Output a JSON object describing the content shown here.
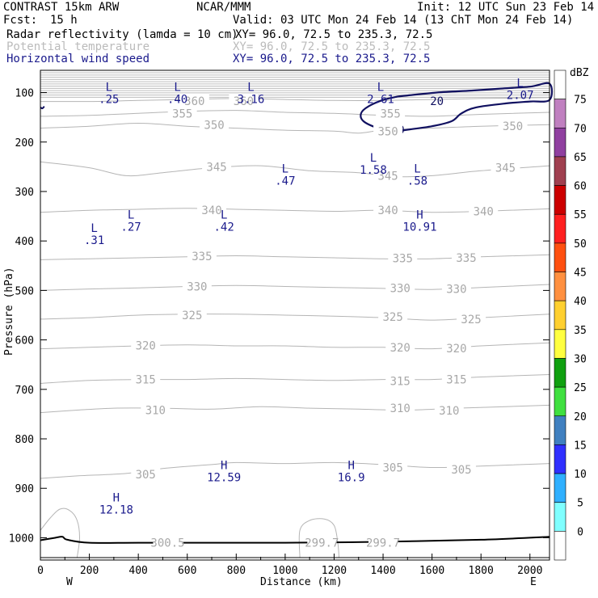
{
  "header": {
    "model": "CONTRAST 15km ARW",
    "org": "NCAR/MMM",
    "init": "Init: 12 UTC Sun 23 Feb 14",
    "fcst_label": "Fcst:",
    "fcst_value": "15 h",
    "valid": "Valid: 03 UTC Mon 24 Feb 14 (13 ChT Mon 24 Feb 14)",
    "fields": [
      {
        "name": "Radar reflectivity (lamda = 10 cm)",
        "xy": "XY=  96.0, 72.5 to 235.3, 72.5",
        "color": "#000000"
      },
      {
        "name": "Potential temperature",
        "xy": "XY=  96.0, 72.5 to 235.3, 72.5",
        "color": "#bbbbbb"
      },
      {
        "name": "Horizontal wind speed",
        "xy": "XY=  96.0, 72.5 to 235.3, 72.5",
        "color": "#1a1a8c"
      }
    ]
  },
  "colorbar": {
    "unit": "dBZ",
    "levels": [
      "75",
      "70",
      "65",
      "60",
      "55",
      "50",
      "45",
      "40",
      "35",
      "30",
      "25",
      "20",
      "15",
      "10",
      "5",
      "0"
    ],
    "colors": [
      "#ffffff",
      "#c080c0",
      "#9040a0",
      "#a04050",
      "#cc0000",
      "#ff2020",
      "#ff5010",
      "#ff9040",
      "#ffd030",
      "#ffff40",
      "#10a010",
      "#40e040",
      "#4080c0",
      "#3030ff",
      "#30b0ff",
      "#80ffff",
      "#ffffff"
    ]
  },
  "chart_data": {
    "type": "cross-section",
    "xlabel": "Distance (km)",
    "ylabel": "Pressure (hPa)",
    "xlim": [
      0,
      2080
    ],
    "ylim": [
      1045,
      55
    ],
    "x_ticks": [
      "0",
      "200",
      "400",
      "600",
      "800",
      "1000",
      "1200",
      "1400",
      "1600",
      "1800",
      "2000"
    ],
    "x_tick_values": [
      0,
      200,
      400,
      600,
      800,
      1000,
      1200,
      1400,
      1600,
      1800,
      2000
    ],
    "y_ticks": [
      "100",
      "200",
      "300",
      "400",
      "500",
      "600",
      "700",
      "800",
      "900",
      "1000"
    ],
    "y_tick_values": [
      100,
      200,
      300,
      400,
      500,
      600,
      700,
      800,
      900,
      1000
    ],
    "endpoints": {
      "left": "W",
      "right": "E"
    },
    "theta_contours": [
      {
        "label": "300.5",
        "points": [
          [
            0,
            1045
          ],
          [
            2080,
            1045
          ]
        ]
      },
      {
        "label": "305",
        "points": [
          [
            0,
            880
          ],
          [
            150,
            875
          ],
          [
            350,
            870
          ],
          [
            500,
            860
          ],
          [
            700,
            852
          ],
          [
            800,
            848
          ],
          [
            1000,
            850
          ],
          [
            1200,
            848
          ],
          [
            1400,
            852
          ],
          [
            1600,
            858
          ],
          [
            1800,
            855
          ],
          [
            2080,
            850
          ]
        ]
      },
      {
        "label": "310",
        "points": [
          [
            0,
            747
          ],
          [
            150,
            742
          ],
          [
            300,
            738
          ],
          [
            500,
            738
          ],
          [
            700,
            740
          ],
          [
            900,
            735
          ],
          [
            1100,
            738
          ],
          [
            1300,
            740
          ],
          [
            1500,
            742
          ],
          [
            1700,
            738
          ],
          [
            1900,
            735
          ],
          [
            2080,
            732
          ]
        ]
      },
      {
        "label": "315",
        "points": [
          [
            0,
            688
          ],
          [
            200,
            682
          ],
          [
            400,
            680
          ],
          [
            600,
            680
          ],
          [
            800,
            678
          ],
          [
            1000,
            680
          ],
          [
            1200,
            682
          ],
          [
            1400,
            680
          ],
          [
            1600,
            680
          ],
          [
            1800,
            675
          ],
          [
            2080,
            670
          ]
        ]
      },
      {
        "label": "320",
        "points": [
          [
            0,
            618
          ],
          [
            200,
            615
          ],
          [
            400,
            612
          ],
          [
            600,
            610
          ],
          [
            800,
            612
          ],
          [
            1000,
            612
          ],
          [
            1200,
            615
          ],
          [
            1400,
            615
          ],
          [
            1600,
            618
          ],
          [
            1800,
            612
          ],
          [
            2080,
            606
          ]
        ]
      },
      {
        "label": "325",
        "points": [
          [
            0,
            558
          ],
          [
            200,
            555
          ],
          [
            400,
            550
          ],
          [
            600,
            548
          ],
          [
            800,
            548
          ],
          [
            1000,
            550
          ],
          [
            1200,
            552
          ],
          [
            1400,
            555
          ],
          [
            1600,
            560
          ],
          [
            1800,
            555
          ],
          [
            2080,
            548
          ]
        ]
      },
      {
        "label": "330",
        "points": [
          [
            0,
            500
          ],
          [
            200,
            497
          ],
          [
            400,
            495
          ],
          [
            600,
            492
          ],
          [
            800,
            490
          ],
          [
            1000,
            492
          ],
          [
            1200,
            494
          ],
          [
            1400,
            496
          ],
          [
            1600,
            498
          ],
          [
            1800,
            494
          ],
          [
            2080,
            488
          ]
        ]
      },
      {
        "label": "335",
        "points": [
          [
            0,
            438
          ],
          [
            200,
            436
          ],
          [
            400,
            434
          ],
          [
            600,
            432
          ],
          [
            800,
            430
          ],
          [
            1000,
            432
          ],
          [
            1200,
            434
          ],
          [
            1400,
            436
          ],
          [
            1600,
            436
          ],
          [
            1800,
            432
          ],
          [
            2080,
            428
          ]
        ]
      },
      {
        "label": "340",
        "points": [
          [
            0,
            342
          ],
          [
            200,
            338
          ],
          [
            400,
            336
          ],
          [
            600,
            334
          ],
          [
            800,
            336
          ],
          [
            1000,
            338
          ],
          [
            1200,
            340
          ],
          [
            1400,
            338
          ],
          [
            1600,
            342
          ],
          [
            1800,
            340
          ],
          [
            2080,
            335
          ]
        ]
      },
      {
        "label": "345",
        "points": [
          [
            0,
            240
          ],
          [
            200,
            252
          ],
          [
            350,
            268
          ],
          [
            500,
            262
          ],
          [
            700,
            252
          ],
          [
            900,
            248
          ],
          [
            1100,
            258
          ],
          [
            1300,
            262
          ],
          [
            1450,
            270
          ],
          [
            1600,
            268
          ],
          [
            1800,
            258
          ],
          [
            2080,
            248
          ]
        ]
      },
      {
        "label": "350",
        "points": [
          [
            0,
            172
          ],
          [
            200,
            168
          ],
          [
            400,
            162
          ],
          [
            600,
            168
          ],
          [
            800,
            172
          ],
          [
            1000,
            176
          ],
          [
            1200,
            178
          ],
          [
            1300,
            182
          ],
          [
            1400,
            176
          ],
          [
            1600,
            172
          ],
          [
            1800,
            168
          ],
          [
            2080,
            165
          ]
        ]
      },
      {
        "label": "355",
        "points": [
          [
            0,
            148
          ],
          [
            200,
            146
          ],
          [
            400,
            142
          ],
          [
            600,
            138
          ],
          [
            800,
            136
          ],
          [
            1000,
            140
          ],
          [
            1200,
            142
          ],
          [
            1400,
            146
          ],
          [
            1600,
            148
          ],
          [
            1800,
            144
          ],
          [
            2080,
            140
          ]
        ]
      },
      {
        "label": "360",
        "points": [
          [
            0,
            118
          ],
          [
            200,
            118
          ],
          [
            400,
            116
          ],
          [
            600,
            114
          ],
          [
            800,
            112
          ],
          [
            1000,
            114
          ],
          [
            1200,
            116
          ],
          [
            1400,
            116
          ],
          [
            1600,
            114
          ],
          [
            1800,
            112
          ],
          [
            2080,
            110
          ]
        ]
      }
    ],
    "theta_labels": [
      {
        "x": 1400,
        "y": 1010,
        "text": "299.7"
      },
      {
        "x": 520,
        "y": 1010,
        "text": "300.5"
      },
      {
        "x": 1150,
        "y": 1010,
        "text": "299.7"
      },
      {
        "x": 430,
        "y": 872,
        "text": "305"
      },
      {
        "x": 1440,
        "y": 858,
        "text": "305"
      },
      {
        "x": 1720,
        "y": 862,
        "text": "305"
      },
      {
        "x": 470,
        "y": 742,
        "text": "310"
      },
      {
        "x": 1470,
        "y": 738,
        "text": "310"
      },
      {
        "x": 1670,
        "y": 743,
        "text": "310"
      },
      {
        "x": 430,
        "y": 680,
        "text": "315"
      },
      {
        "x": 1470,
        "y": 683,
        "text": "315"
      },
      {
        "x": 1700,
        "y": 680,
        "text": "315"
      },
      {
        "x": 430,
        "y": 611,
        "text": "320"
      },
      {
        "x": 1470,
        "y": 615,
        "text": "320"
      },
      {
        "x": 1700,
        "y": 617,
        "text": "320"
      },
      {
        "x": 620,
        "y": 550,
        "text": "325"
      },
      {
        "x": 1440,
        "y": 553,
        "text": "325"
      },
      {
        "x": 1760,
        "y": 558,
        "text": "325"
      },
      {
        "x": 640,
        "y": 492,
        "text": "330"
      },
      {
        "x": 1470,
        "y": 495,
        "text": "330"
      },
      {
        "x": 1700,
        "y": 497,
        "text": "330"
      },
      {
        "x": 660,
        "y": 431,
        "text": "335"
      },
      {
        "x": 1480,
        "y": 435,
        "text": "335"
      },
      {
        "x": 1740,
        "y": 434,
        "text": "335"
      },
      {
        "x": 700,
        "y": 338,
        "text": "340"
      },
      {
        "x": 1420,
        "y": 338,
        "text": "340"
      },
      {
        "x": 1810,
        "y": 340,
        "text": "340"
      },
      {
        "x": 720,
        "y": 250,
        "text": "345"
      },
      {
        "x": 1420,
        "y": 268,
        "text": "345"
      },
      {
        "x": 1900,
        "y": 252,
        "text": "345"
      },
      {
        "x": 580,
        "y": 142,
        "text": "355"
      },
      {
        "x": 1430,
        "y": 142,
        "text": "355"
      },
      {
        "x": 710,
        "y": 165,
        "text": "350"
      },
      {
        "x": 1420,
        "y": 178,
        "text": "350"
      },
      {
        "x": 1930,
        "y": 168,
        "text": "350"
      },
      {
        "x": 630,
        "y": 117,
        "text": "360"
      },
      {
        "x": 830,
        "y": 117,
        "text": "360"
      }
    ],
    "extrema": [
      {
        "x": 280,
        "y": 90,
        "kind": "L",
        "value": ".25"
      },
      {
        "x": 560,
        "y": 90,
        "kind": "L",
        "value": ".40"
      },
      {
        "x": 860,
        "y": 90,
        "kind": "L",
        "value": "3.16"
      },
      {
        "x": 1390,
        "y": 90,
        "kind": "L",
        "value": "2.61"
      },
      {
        "x": 1960,
        "y": 82,
        "kind": "L",
        "value": "2.07"
      },
      {
        "x": 1000,
        "y": 255,
        "kind": "L",
        "value": ".47"
      },
      {
        "x": 1360,
        "y": 233,
        "kind": "L",
        "value": "1.58"
      },
      {
        "x": 1540,
        "y": 255,
        "kind": "L",
        "value": ".58"
      },
      {
        "x": 370,
        "y": 348,
        "kind": "L",
        "value": ".27"
      },
      {
        "x": 750,
        "y": 348,
        "kind": "L",
        "value": ".42"
      },
      {
        "x": 220,
        "y": 375,
        "kind": "L",
        "value": ".31"
      },
      {
        "x": 1550,
        "y": 348,
        "kind": "H",
        "value": "10.91"
      },
      {
        "x": 750,
        "y": 855,
        "kind": "H",
        "value": "12.59"
      },
      {
        "x": 1270,
        "y": 855,
        "kind": "H",
        "value": "16.9"
      },
      {
        "x": 310,
        "y": 920,
        "kind": "H",
        "value": "12.18"
      }
    ],
    "wind_contour": {
      "value": "20",
      "points": [
        [
          1460,
          108
        ],
        [
          1620,
          100
        ],
        [
          1760,
          96
        ],
        [
          1880,
          92
        ],
        [
          2000,
          88
        ],
        [
          2080,
          82
        ],
        [
          2080,
          115
        ],
        [
          2000,
          118
        ],
        [
          1900,
          122
        ],
        [
          1780,
          130
        ],
        [
          1720,
          142
        ],
        [
          1680,
          158
        ],
        [
          1600,
          168
        ],
        [
          1500,
          175
        ],
        [
          1440,
          178
        ],
        [
          1380,
          172
        ],
        [
          1320,
          158
        ],
        [
          1310,
          142
        ],
        [
          1340,
          128
        ],
        [
          1400,
          115
        ],
        [
          1460,
          108
        ]
      ],
      "labels": [
        {
          "x": 1620,
          "y": 117,
          "text": "20"
        },
        {
          "x": 1460,
          "y": 175,
          "text": "20"
        }
      ]
    },
    "terrain": [
      [
        0,
        1005
      ],
      [
        60,
        1000
      ],
      [
        90,
        998
      ],
      [
        110,
        1004
      ],
      [
        200,
        1010
      ],
      [
        400,
        1010
      ],
      [
        700,
        1010
      ],
      [
        1000,
        1010
      ],
      [
        1400,
        1008
      ],
      [
        1800,
        1004
      ],
      [
        2080,
        998
      ]
    ]
  }
}
